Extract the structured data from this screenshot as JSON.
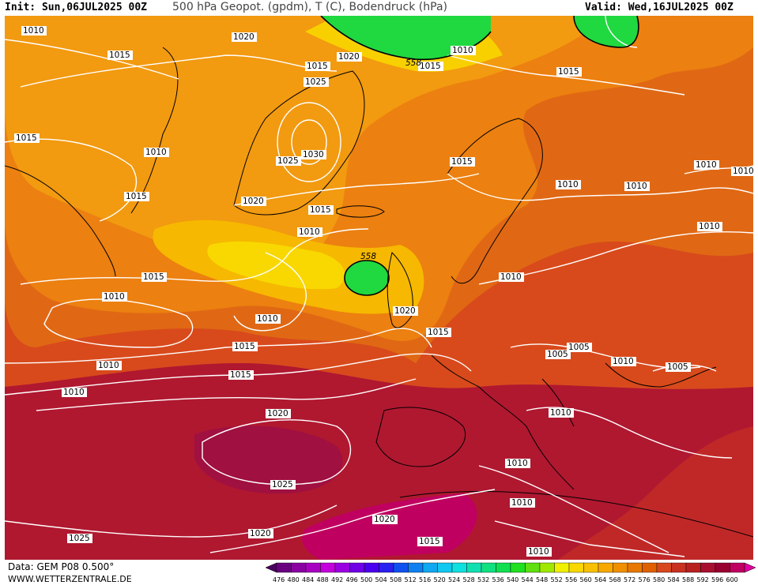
{
  "header": {
    "init": "Init: Sun,06JUL2025 00Z",
    "title": "500 hPa Geopot. (gpdm), T (C), Bodendruck (hPa)",
    "valid": "Valid: Wed,16JUL2025 00Z"
  },
  "footer": {
    "data": "Data: GEM P08 0.500°",
    "site": "WWW.WETTERZENTRALE.DE"
  },
  "legend": {
    "ticks": [
      "476",
      "480",
      "484",
      "488",
      "492",
      "496",
      "500",
      "504",
      "508",
      "512",
      "516",
      "520",
      "524",
      "528",
      "532",
      "536",
      "540",
      "544",
      "548",
      "552",
      "556",
      "560",
      "564",
      "568",
      "572",
      "576",
      "580",
      "584",
      "588",
      "592",
      "596",
      "600"
    ],
    "colors": [
      "#4b0060",
      "#6a0080",
      "#8a00a0",
      "#a800c0",
      "#c400dc",
      "#9a00e0",
      "#7000e6",
      "#4a00ee",
      "#2a20f0",
      "#1050f0",
      "#1080f0",
      "#10a8f0",
      "#10c8f0",
      "#10e0e0",
      "#10e0b0",
      "#10e080",
      "#10e050",
      "#20e020",
      "#60e010",
      "#a0e800",
      "#f0f000",
      "#f8d800",
      "#f8c000",
      "#f8a800",
      "#f09000",
      "#e87800",
      "#e06000",
      "#d84820",
      "#c83020",
      "#b82020",
      "#a81030",
      "#980030",
      "#c00060",
      "#e000a0"
    ]
  },
  "isobars": [
    "1010",
    "1015",
    "1020",
    "1015",
    "1025",
    "1030",
    "1025",
    "1020",
    "1020",
    "1015",
    "1010",
    "1015",
    "1015",
    "1015",
    "1010",
    "1015",
    "1010",
    "1010",
    "1010",
    "1015",
    "1020",
    "1015",
    "1010",
    "1015",
    "1020",
    "1025",
    "1025",
    "1020",
    "1020",
    "1015",
    "1010",
    "1010",
    "1015",
    "1010",
    "1010",
    "1010",
    "1010",
    "1005",
    "1005",
    "1005",
    "1010",
    "1010",
    "1010",
    "1015",
    "1010",
    "1010",
    "1010"
  ],
  "geopotential": [
    "558",
    "558"
  ]
}
